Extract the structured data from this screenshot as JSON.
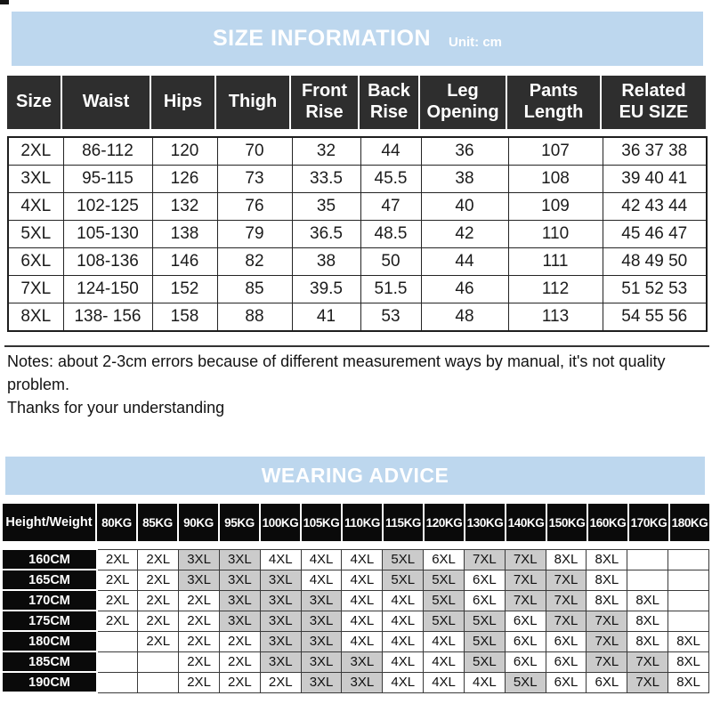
{
  "colors": {
    "banner_blue": "#bdd7ee",
    "header_charcoal": "#2e2e2e",
    "header_black": "#0a0a0a",
    "shade_gray": "#cbcbcb"
  },
  "size_info": {
    "title": "SIZE INFORMATION",
    "unit_label": "Unit: cm",
    "table": {
      "headers": [
        "Size",
        "Waist",
        "Hips",
        "Thigh",
        "Front\nRise",
        "Back\nRise",
        "Leg\nOpening",
        "Pants\nLength",
        "Related\nEU SIZE"
      ],
      "rows": [
        [
          "2XL",
          "86-112",
          "120",
          "70",
          "32",
          "44",
          "36",
          "107",
          "36 37 38"
        ],
        [
          "3XL",
          "95-115",
          "126",
          "73",
          "33.5",
          "45.5",
          "38",
          "108",
          "39 40 41"
        ],
        [
          "4XL",
          "102-125",
          "132",
          "76",
          "35",
          "47",
          "40",
          "109",
          "42 43 44"
        ],
        [
          "5XL",
          "105-130",
          "138",
          "79",
          "36.5",
          "48.5",
          "42",
          "110",
          "45 46 47"
        ],
        [
          "6XL",
          "108-136",
          "146",
          "82",
          "38",
          "50",
          "44",
          "111",
          "48 49 50"
        ],
        [
          "7XL",
          "124-150",
          "152",
          "85",
          "39.5",
          "51.5",
          "46",
          "112",
          "51 52 53"
        ],
        [
          "8XL",
          "138- 156",
          "158",
          "88",
          "41",
          "53",
          "48",
          "113",
          "54 55 56"
        ]
      ]
    }
  },
  "notes": {
    "text": "Notes: about 2-3cm errors because of different measurement ways by manual, it's not quality problem.",
    "thanks": "Thanks for your understanding"
  },
  "wearing": {
    "title": "WEARING ADVICE",
    "table": {
      "corner_header": "Height/Weight",
      "weight_headers": [
        "80KG",
        "85KG",
        "90KG",
        "95KG",
        "100KG",
        "105KG",
        "110KG",
        "115KG",
        "120KG",
        "130KG",
        "140KG",
        "150KG",
        "160KG",
        "170KG",
        "180KG"
      ],
      "shaded_sizes": [
        "3XL",
        "5XL",
        "7XL"
      ],
      "rows": [
        {
          "height": "160CM",
          "sizes": [
            "2XL",
            "2XL",
            "3XL",
            "3XL",
            "4XL",
            "4XL",
            "4XL",
            "5XL",
            "6XL",
            "7XL",
            "7XL",
            "8XL",
            "8XL",
            "",
            ""
          ]
        },
        {
          "height": "165CM",
          "sizes": [
            "2XL",
            "2XL",
            "3XL",
            "3XL",
            "3XL",
            "4XL",
            "4XL",
            "5XL",
            "5XL",
            "6XL",
            "7XL",
            "7XL",
            "8XL",
            "",
            ""
          ]
        },
        {
          "height": "170CM",
          "sizes": [
            "2XL",
            "2XL",
            "2XL",
            "3XL",
            "3XL",
            "3XL",
            "4XL",
            "4XL",
            "5XL",
            "6XL",
            "7XL",
            "7XL",
            "8XL",
            "8XL",
            ""
          ]
        },
        {
          "height": "175CM",
          "sizes": [
            "2XL",
            "2XL",
            "2XL",
            "3XL",
            "3XL",
            "3XL",
            "4XL",
            "4XL",
            "5XL",
            "5XL",
            "6XL",
            "7XL",
            "7XL",
            "8XL",
            ""
          ]
        },
        {
          "height": "180CM",
          "sizes": [
            "",
            "2XL",
            "2XL",
            "2XL",
            "3XL",
            "3XL",
            "4XL",
            "4XL",
            "4XL",
            "5XL",
            "6XL",
            "6XL",
            "7XL",
            "8XL",
            "8XL"
          ]
        },
        {
          "height": "185CM",
          "sizes": [
            "",
            "",
            "2XL",
            "2XL",
            "3XL",
            "3XL",
            "3XL",
            "4XL",
            "4XL",
            "5XL",
            "6XL",
            "6XL",
            "7XL",
            "7XL",
            "8XL"
          ]
        },
        {
          "height": "190CM",
          "sizes": [
            "",
            "",
            "2XL",
            "2XL",
            "2XL",
            "3XL",
            "3XL",
            "4XL",
            "4XL",
            "4XL",
            "5XL",
            "6XL",
            "6XL",
            "7XL",
            "8XL"
          ]
        }
      ]
    }
  }
}
